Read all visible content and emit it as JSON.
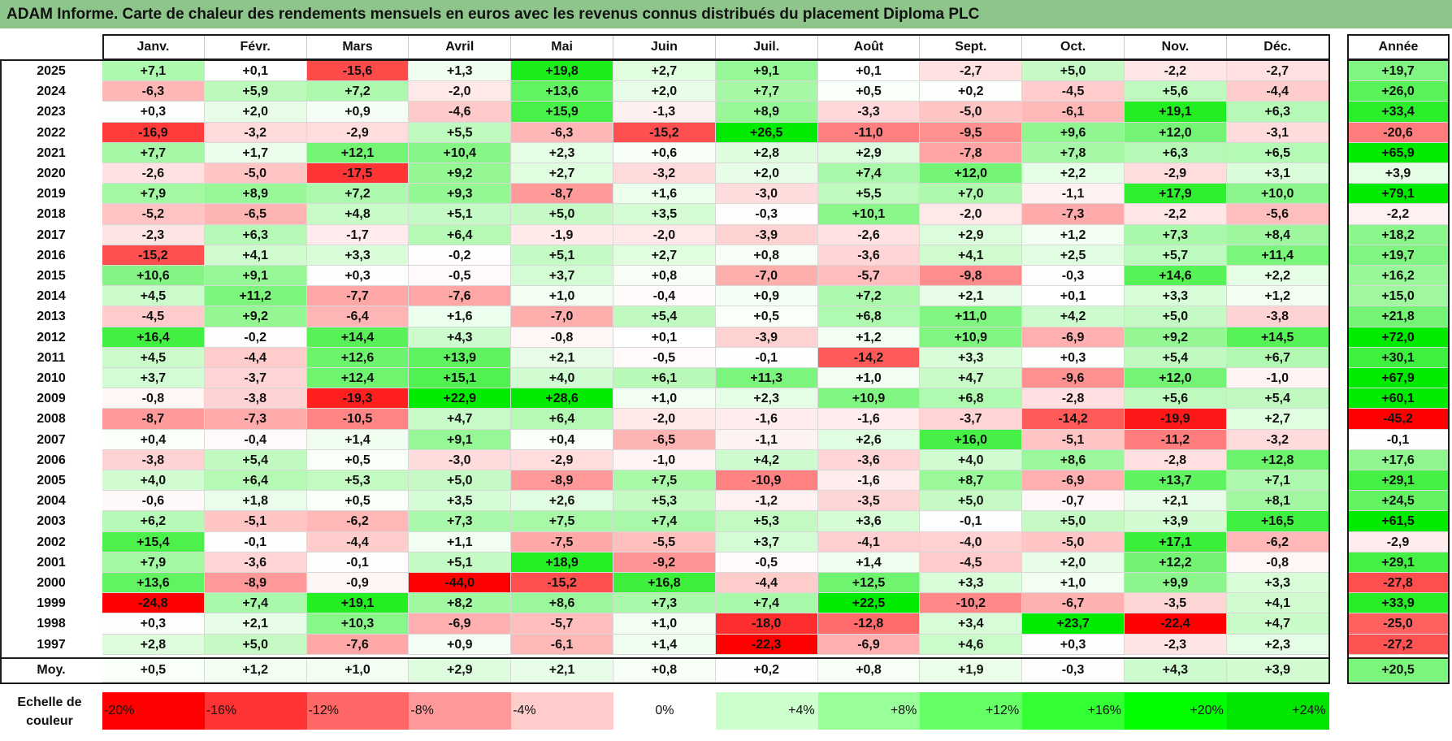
{
  "title": "ADAM Informe. Carte de chaleur des rendements mensuels en euros avec les revenus connus distribués du placement Diploma PLC",
  "chart_data": {
    "type": "heatmap",
    "months": [
      "Janv.",
      "Févr.",
      "Mars",
      "Avril",
      "Mai",
      "Juin",
      "Juil.",
      "Août",
      "Sept.",
      "Oct.",
      "Nov.",
      "Déc."
    ],
    "year_header": "Année",
    "rows": [
      {
        "year": "2025",
        "values": [
          "+7,1",
          "+0,1",
          "-15,6",
          "+1,3",
          "+19,8",
          "+2,7",
          "+9,1",
          "+0,1",
          "-2,7",
          "+5,0",
          "-2,2",
          "-2,7"
        ],
        "annual": "+19,7"
      },
      {
        "year": "2024",
        "values": [
          "-6,3",
          "+5,9",
          "+7,2",
          "-2,0",
          "+13,6",
          "+2,0",
          "+7,7",
          "+0,5",
          "+0,2",
          "-4,5",
          "+5,6",
          "-4,4"
        ],
        "annual": "+26,0"
      },
      {
        "year": "2023",
        "values": [
          "+0,3",
          "+2,0",
          "+0,9",
          "-4,6",
          "+15,9",
          "-1,3",
          "+8,9",
          "-3,3",
          "-5,0",
          "-6,1",
          "+19,1",
          "+6,3"
        ],
        "annual": "+33,4"
      },
      {
        "year": "2022",
        "values": [
          "-16,9",
          "-3,2",
          "-2,9",
          "+5,5",
          "-6,3",
          "-15,2",
          "+26,5",
          "-11,0",
          "-9,5",
          "+9,6",
          "+12,0",
          "-3,1"
        ],
        "annual": "-20,6"
      },
      {
        "year": "2021",
        "values": [
          "+7,7",
          "+1,7",
          "+12,1",
          "+10,4",
          "+2,3",
          "+0,6",
          "+2,8",
          "+2,9",
          "-7,8",
          "+7,8",
          "+6,3",
          "+6,5"
        ],
        "annual": "+65,9"
      },
      {
        "year": "2020",
        "values": [
          "-2,6",
          "-5,0",
          "-17,5",
          "+9,2",
          "+2,7",
          "-3,2",
          "+2,0",
          "+7,4",
          "+12,0",
          "+2,2",
          "-2,9",
          "+3,1"
        ],
        "annual": "+3,9"
      },
      {
        "year": "2019",
        "values": [
          "+7,9",
          "+8,9",
          "+7,2",
          "+9,3",
          "-8,7",
          "+1,6",
          "-3,0",
          "+5,5",
          "+7,0",
          "-1,1",
          "+17,9",
          "+10,0"
        ],
        "annual": "+79,1"
      },
      {
        "year": "2018",
        "values": [
          "-5,2",
          "-6,5",
          "+4,8",
          "+5,1",
          "+5,0",
          "+3,5",
          "-0,3",
          "+10,1",
          "-2,0",
          "-7,3",
          "-2,2",
          "-5,6"
        ],
        "annual": "-2,2"
      },
      {
        "year": "2017",
        "values": [
          "-2,3",
          "+6,3",
          "-1,7",
          "+6,4",
          "-1,9",
          "-2,0",
          "-3,9",
          "-2,6",
          "+2,9",
          "+1,2",
          "+7,3",
          "+8,4"
        ],
        "annual": "+18,2"
      },
      {
        "year": "2016",
        "values": [
          "-15,2",
          "+4,1",
          "+3,3",
          "-0,2",
          "+5,1",
          "+2,7",
          "+0,8",
          "-3,6",
          "+4,1",
          "+2,5",
          "+5,7",
          "+11,4"
        ],
        "annual": "+19,7"
      },
      {
        "year": "2015",
        "values": [
          "+10,6",
          "+9,1",
          "+0,3",
          "-0,5",
          "+3,7",
          "+0,8",
          "-7,0",
          "-5,7",
          "-9,8",
          "-0,3",
          "+14,6",
          "+2,2"
        ],
        "annual": "+16,2"
      },
      {
        "year": "2014",
        "values": [
          "+4,5",
          "+11,2",
          "-7,7",
          "-7,6",
          "+1,0",
          "-0,4",
          "+0,9",
          "+7,2",
          "+2,1",
          "+0,1",
          "+3,3",
          "+1,2"
        ],
        "annual": "+15,0"
      },
      {
        "year": "2013",
        "values": [
          "-4,5",
          "+9,2",
          "-6,4",
          "+1,6",
          "-7,0",
          "+5,4",
          "+0,5",
          "+6,8",
          "+11,0",
          "+4,2",
          "+5,0",
          "-3,8"
        ],
        "annual": "+21,8"
      },
      {
        "year": "2012",
        "values": [
          "+16,4",
          "-0,2",
          "+14,4",
          "+4,3",
          "-0,8",
          "+0,1",
          "-3,9",
          "+1,2",
          "+10,9",
          "-6,9",
          "+9,2",
          "+14,5"
        ],
        "annual": "+72,0"
      },
      {
        "year": "2011",
        "values": [
          "+4,5",
          "-4,4",
          "+12,6",
          "+13,9",
          "+2,1",
          "-0,5",
          "-0,1",
          "-14,2",
          "+3,3",
          "+0,3",
          "+5,4",
          "+6,7"
        ],
        "annual": "+30,1"
      },
      {
        "year": "2010",
        "values": [
          "+3,7",
          "-3,7",
          "+12,4",
          "+15,1",
          "+4,0",
          "+6,1",
          "+11,3",
          "+1,0",
          "+4,7",
          "-9,6",
          "+12,0",
          "-1,0"
        ],
        "annual": "+67,9"
      },
      {
        "year": "2009",
        "values": [
          "-0,8",
          "-3,8",
          "-19,3",
          "+22,9",
          "+28,6",
          "+1,0",
          "+2,3",
          "+10,9",
          "+6,8",
          "-2,8",
          "+5,6",
          "+5,4"
        ],
        "annual": "+60,1"
      },
      {
        "year": "2008",
        "values": [
          "-8,7",
          "-7,3",
          "-10,5",
          "+4,7",
          "+6,4",
          "-2,0",
          "-1,6",
          "-1,6",
          "-3,7",
          "-14,2",
          "-19,9",
          "+2,7"
        ],
        "annual": "-45,2"
      },
      {
        "year": "2007",
        "values": [
          "+0,4",
          "-0,4",
          "+1,4",
          "+9,1",
          "+0,4",
          "-6,5",
          "-1,1",
          "+2,6",
          "+16,0",
          "-5,1",
          "-11,2",
          "-3,2"
        ],
        "annual": "-0,1"
      },
      {
        "year": "2006",
        "values": [
          "-3,8",
          "+5,4",
          "+0,5",
          "-3,0",
          "-2,9",
          "-1,0",
          "+4,2",
          "-3,6",
          "+4,0",
          "+8,6",
          "-2,8",
          "+12,8"
        ],
        "annual": "+17,6"
      },
      {
        "year": "2005",
        "values": [
          "+4,0",
          "+6,4",
          "+5,3",
          "+5,0",
          "-8,9",
          "+7,5",
          "-10,9",
          "-1,6",
          "+8,7",
          "-6,9",
          "+13,7",
          "+7,1"
        ],
        "annual": "+29,1"
      },
      {
        "year": "2004",
        "values": [
          "-0,6",
          "+1,8",
          "+0,5",
          "+3,5",
          "+2,6",
          "+5,3",
          "-1,2",
          "-3,5",
          "+5,0",
          "-0,7",
          "+2,1",
          "+8,1"
        ],
        "annual": "+24,5"
      },
      {
        "year": "2003",
        "values": [
          "+6,2",
          "-5,1",
          "-6,2",
          "+7,3",
          "+7,5",
          "+7,4",
          "+5,3",
          "+3,6",
          "-0,1",
          "+5,0",
          "+3,9",
          "+16,5"
        ],
        "annual": "+61,5"
      },
      {
        "year": "2002",
        "values": [
          "+15,4",
          "-0,1",
          "-4,4",
          "+1,1",
          "-7,5",
          "-5,5",
          "+3,7",
          "-4,1",
          "-4,0",
          "-5,0",
          "+17,1",
          "-6,2"
        ],
        "annual": "-2,9"
      },
      {
        "year": "2001",
        "values": [
          "+7,9",
          "-3,6",
          "-0,1",
          "+5,1",
          "+18,9",
          "-9,2",
          "-0,5",
          "+1,4",
          "-4,5",
          "+2,0",
          "+12,2",
          "-0,8"
        ],
        "annual": "+29,1"
      },
      {
        "year": "2000",
        "values": [
          "+13,6",
          "-8,9",
          "-0,9",
          "-44,0",
          "-15,2",
          "+16,8",
          "-4,4",
          "+12,5",
          "+3,3",
          "+1,0",
          "+9,9",
          "+3,3"
        ],
        "annual": "-27,8"
      },
      {
        "year": "1999",
        "values": [
          "-24,8",
          "+7,4",
          "+19,1",
          "+8,2",
          "+8,6",
          "+7,3",
          "+7,4",
          "+22,5",
          "-10,2",
          "-6,7",
          "-3,5",
          "+4,1"
        ],
        "annual": "+33,9"
      },
      {
        "year": "1998",
        "values": [
          "+0,3",
          "+2,1",
          "+10,3",
          "-6,9",
          "-5,7",
          "+1,0",
          "-18,0",
          "-12,8",
          "+3,4",
          "+23,7",
          "-22,4",
          "+4,7"
        ],
        "annual": "-25,0"
      },
      {
        "year": "1997",
        "values": [
          "+2,8",
          "+5,0",
          "-7,6",
          "+0,9",
          "-6,1",
          "+1,4",
          "-22,3",
          "-6,9",
          "+4,6",
          "+0,3",
          "-2,3",
          "+2,3"
        ],
        "annual": "-27,2"
      }
    ],
    "average": {
      "label": "Moy.",
      "values": [
        "+0,5",
        "+1,2",
        "+1,0",
        "+2,9",
        "+2,1",
        "+0,8",
        "+0,2",
        "+0,8",
        "+1,9",
        "-0,3",
        "+4,3",
        "+3,9"
      ],
      "annual": "+20,5"
    },
    "legend": {
      "label": "Echelle de couleur",
      "steps": [
        {
          "text": "-20%",
          "value": -20,
          "color": "#ff0000"
        },
        {
          "text": "-16%",
          "value": -16,
          "color": "#ff3333"
        },
        {
          "text": "-12%",
          "value": -12,
          "color": "#ff6666"
        },
        {
          "text": "-8%",
          "value": -8,
          "color": "#ff9999"
        },
        {
          "text": "-4%",
          "value": -4,
          "color": "#ffcccc"
        },
        {
          "text": "0%",
          "value": 0,
          "color": "#ffffff"
        },
        {
          "text": "+4%",
          "value": 4,
          "color": "#ccffcc"
        },
        {
          "text": "+8%",
          "value": 8,
          "color": "#99ff99"
        },
        {
          "text": "+12%",
          "value": 12,
          "color": "#66ff66"
        },
        {
          "text": "+16%",
          "value": 16,
          "color": "#33ff33"
        },
        {
          "text": "+20%",
          "value": 20,
          "color": "#00ff00"
        },
        {
          "text": "+24%",
          "value": 24,
          "color": "#00e600"
        }
      ]
    }
  }
}
